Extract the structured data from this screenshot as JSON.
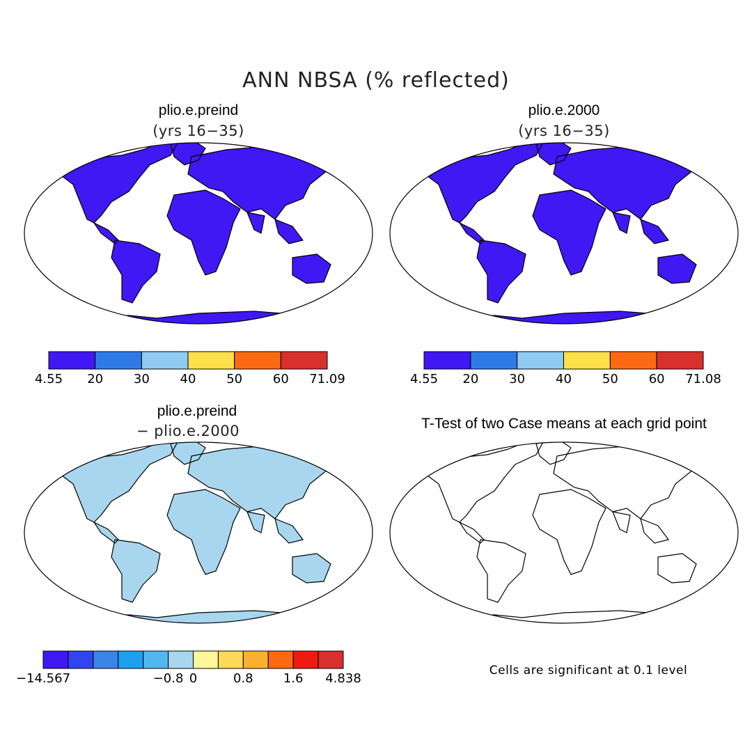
{
  "title": "ANN NBSA (% reflected)",
  "panels": [
    {
      "id": "preind",
      "heading": "plio.e.preind",
      "subheading": "(yrs 16−35)",
      "colorbar": {
        "colors": [
          "#4018f4",
          "#2e7be8",
          "#8fcaf0",
          "#fde04a",
          "#fb6a12",
          "#d8302c"
        ],
        "labels": [
          "4.55",
          "20",
          "30",
          "40",
          "50",
          "60",
          "71.09"
        ]
      }
    },
    {
      "id": "y2000",
      "heading": "plio.e.2000",
      "subheading": "(yrs 16−35)",
      "colorbar": {
        "colors": [
          "#4018f4",
          "#2e7be8",
          "#8fcaf0",
          "#fde04a",
          "#fb6a12",
          "#d8302c"
        ],
        "labels": [
          "4.55",
          "20",
          "30",
          "40",
          "50",
          "60",
          "71.08"
        ]
      }
    },
    {
      "id": "diff",
      "heading": "plio.e.preind",
      "subheading": "− plio.e.2000",
      "colorbar": {
        "colors": [
          "#4018f4",
          "#3045ee",
          "#3a83e8",
          "#1ea0f0",
          "#52b6ef",
          "#a8d6ee",
          "#fff69a",
          "#fdd95a",
          "#fcb032",
          "#fb6a12",
          "#ee1c10",
          "#d8302c"
        ],
        "labels": [
          "−14.567",
          "−0.8",
          "0",
          "0.8",
          "1.6",
          "4.838"
        ],
        "label_slots": [
          0,
          3,
          4,
          5,
          6,
          7
        ]
      }
    },
    {
      "id": "ttest",
      "heading": "T-Test of two Case means at each grid point",
      "note": "Cells are significant at 0.1 level",
      "color": "#ff0000"
    }
  ]
}
